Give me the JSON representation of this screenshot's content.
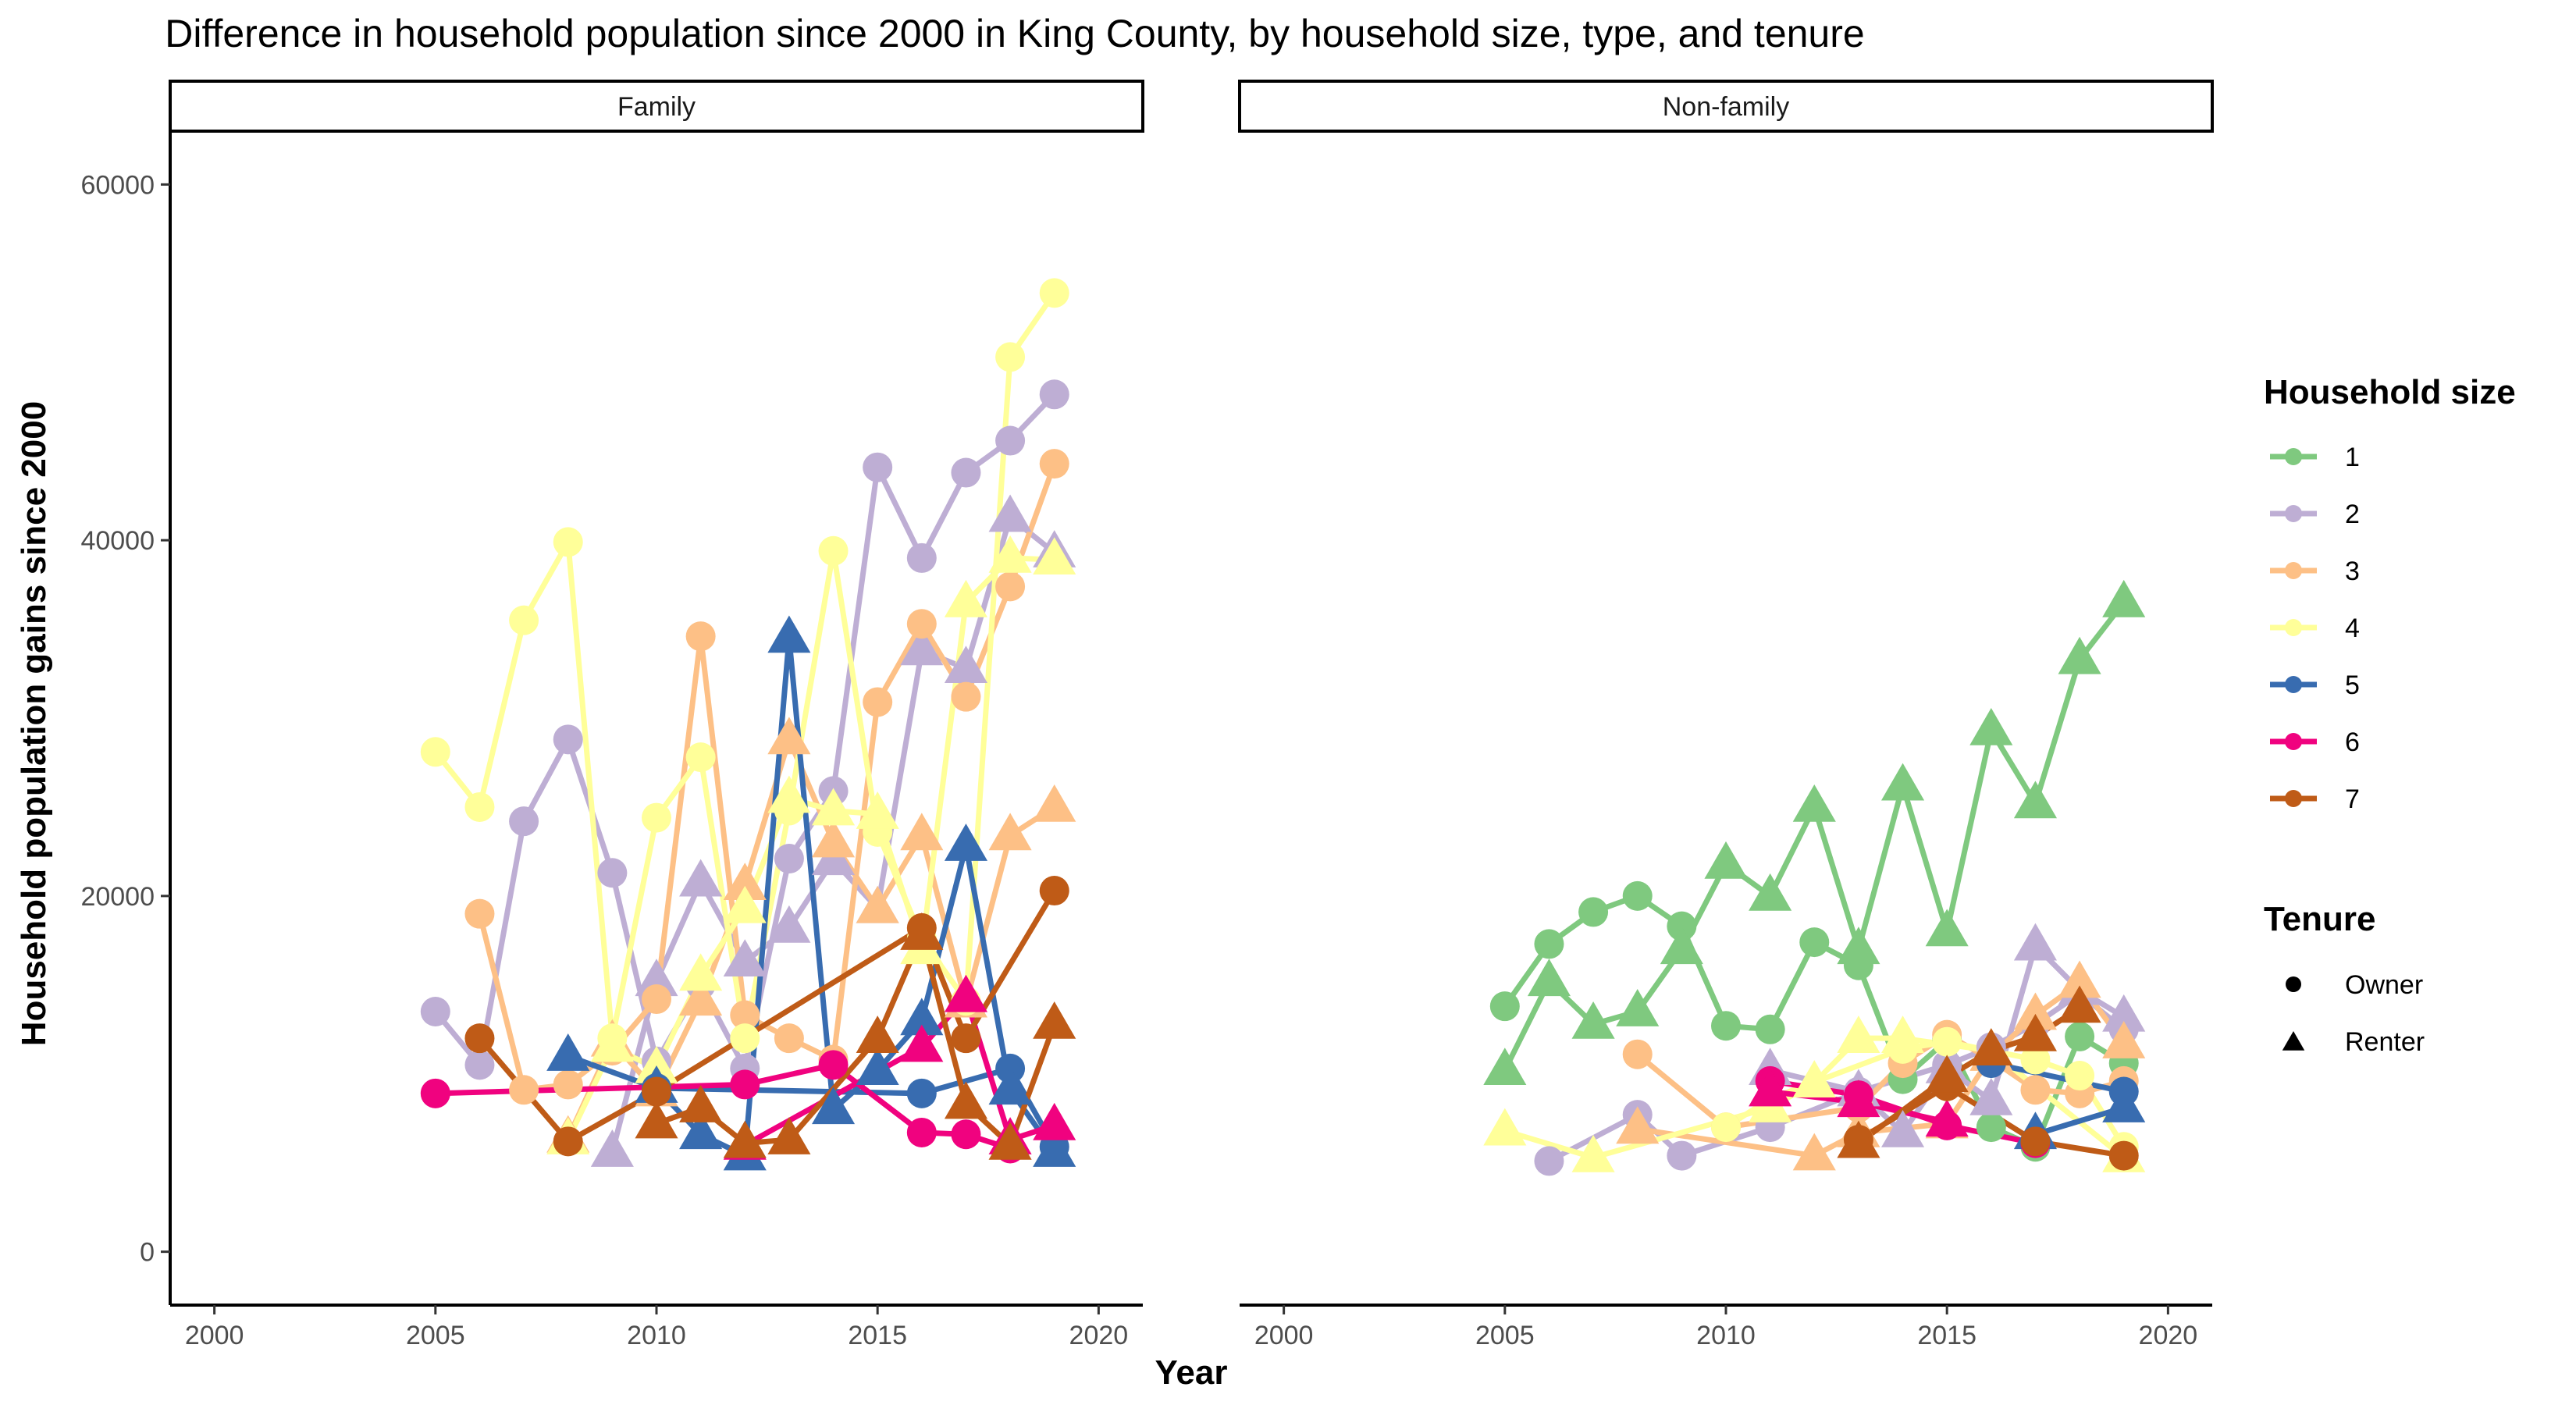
{
  "chart_data": {
    "type": "line",
    "title": "Difference in household population since 2000 in King County, by household size, type, and tenure",
    "xlabel": "Year",
    "ylabel": "Household population gains since 2000",
    "xlim": [
      1999,
      2021
    ],
    "ylim": [
      -3000,
      63000
    ],
    "xticks": [
      "2000",
      "2005",
      "2010",
      "2015",
      "2020"
    ],
    "yticks": [
      "0",
      "20000",
      "40000",
      "60000"
    ],
    "grid": false,
    "legend_placement": "right",
    "panels": [
      "Family",
      "Non-family"
    ],
    "legends": {
      "size": {
        "title": "Household size",
        "entries": [
          {
            "label": "1",
            "color": "#7FC97F"
          },
          {
            "label": "2",
            "color": "#BEAED4"
          },
          {
            "label": "3",
            "color": "#FDC086"
          },
          {
            "label": "4",
            "color": "#FFFF99"
          },
          {
            "label": "5",
            "color": "#386CB0"
          },
          {
            "label": "6",
            "color": "#F0027F"
          },
          {
            "label": "7",
            "color": "#BF5B17"
          }
        ]
      },
      "tenure": {
        "title": "Tenure",
        "entries": [
          {
            "label": "Owner",
            "shape": "circle"
          },
          {
            "label": "Renter",
            "shape": "triangle"
          }
        ]
      }
    },
    "series": [
      {
        "panel": 0,
        "size": 2,
        "tenure": "Owner",
        "points": [
          [
            2005,
            13500
          ],
          [
            2006,
            10500
          ],
          [
            2007,
            24200
          ],
          [
            2008,
            28800
          ],
          [
            2009,
            21300
          ],
          [
            2010,
            10700
          ],
          [
            2011,
            15000
          ],
          [
            2012,
            10300
          ],
          [
            2013,
            22100
          ],
          [
            2014,
            25900
          ],
          [
            2015,
            44100
          ],
          [
            2016,
            39000
          ],
          [
            2017,
            43800
          ],
          [
            2018,
            45600
          ],
          [
            2019,
            48200
          ]
        ]
      },
      {
        "panel": 0,
        "size": 2,
        "tenure": "Renter",
        "points": [
          [
            2009,
            5600
          ],
          [
            2010,
            15200
          ],
          [
            2011,
            20800
          ],
          [
            2012,
            16300
          ],
          [
            2013,
            18200
          ],
          [
            2014,
            22000
          ],
          [
            2015,
            19300
          ],
          [
            2016,
            33800
          ],
          [
            2017,
            32800
          ],
          [
            2018,
            41300
          ],
          [
            2019,
            39300
          ]
        ]
      },
      {
        "panel": 0,
        "size": 3,
        "tenure": "Owner",
        "points": [
          [
            2006,
            19000
          ],
          [
            2007,
            9100
          ],
          [
            2008,
            9400
          ],
          [
            2009,
            11300
          ],
          [
            2010,
            14200
          ],
          [
            2011,
            34600
          ],
          [
            2012,
            13300
          ],
          [
            2013,
            12000
          ],
          [
            2014,
            10800
          ],
          [
            2015,
            30900
          ],
          [
            2016,
            35300
          ],
          [
            2017,
            31200
          ],
          [
            2018,
            37400
          ],
          [
            2019,
            44300
          ]
        ]
      },
      {
        "panel": 0,
        "size": 3,
        "tenure": "Renter",
        "points": [
          [
            2008,
            6400
          ],
          [
            2009,
            11800
          ],
          [
            2010,
            9000
          ],
          [
            2011,
            14100
          ],
          [
            2012,
            20600
          ],
          [
            2013,
            28800
          ],
          [
            2014,
            23000
          ],
          [
            2015,
            19300
          ],
          [
            2016,
            23400
          ],
          [
            2017,
            14000
          ],
          [
            2018,
            23400
          ],
          [
            2019,
            25000
          ]
        ]
      },
      {
        "panel": 0,
        "size": 4,
        "tenure": "Owner",
        "points": [
          [
            2005,
            28100
          ],
          [
            2006,
            25000
          ],
          [
            2007,
            35500
          ],
          [
            2008,
            39900
          ],
          [
            2009,
            12000
          ],
          [
            2010,
            24400
          ],
          [
            2011,
            27800
          ],
          [
            2012,
            12000
          ],
          [
            2013,
            24800
          ],
          [
            2014,
            39400
          ],
          [
            2015,
            23600
          ],
          [
            2016,
            17600
          ],
          [
            2017,
            14100
          ],
          [
            2018,
            50300
          ],
          [
            2019,
            53900
          ]
        ]
      },
      {
        "panel": 0,
        "size": 4,
        "tenure": "Renter",
        "points": [
          [
            2008,
            6300
          ],
          [
            2009,
            11500
          ],
          [
            2010,
            10300
          ],
          [
            2011,
            15500
          ],
          [
            2012,
            19300
          ],
          [
            2013,
            25500
          ],
          [
            2014,
            24800
          ],
          [
            2015,
            24600
          ],
          [
            2016,
            17000
          ],
          [
            2017,
            36500
          ],
          [
            2018,
            39000
          ],
          [
            2019,
            38900
          ]
        ]
      },
      {
        "panel": 0,
        "size": 5,
        "tenure": "Owner",
        "points": [
          [
            2010,
            9200
          ],
          [
            2016,
            8900
          ],
          [
            2018,
            10300
          ],
          [
            2019,
            5900
          ]
        ]
      },
      {
        "panel": 0,
        "size": 5,
        "tenure": "Renter",
        "points": [
          [
            2008,
            11000
          ],
          [
            2010,
            9200
          ],
          [
            2011,
            6600
          ],
          [
            2012,
            5400
          ],
          [
            2013,
            34500
          ],
          [
            2014,
            8000
          ],
          [
            2015,
            10200
          ],
          [
            2016,
            13000
          ],
          [
            2017,
            22800
          ],
          [
            2018,
            9100
          ],
          [
            2019,
            5600
          ]
        ]
      },
      {
        "panel": 0,
        "size": 6,
        "tenure": "Owner",
        "points": [
          [
            2005,
            8900
          ],
          [
            2012,
            9400
          ],
          [
            2014,
            10500
          ],
          [
            2016,
            6700
          ],
          [
            2017,
            6600
          ],
          [
            2018,
            5800
          ]
        ]
      },
      {
        "panel": 0,
        "size": 6,
        "tenure": "Renter",
        "points": [
          [
            2012,
            6000
          ],
          [
            2016,
            11500
          ],
          [
            2017,
            14300
          ],
          [
            2018,
            6300
          ],
          [
            2019,
            7100
          ]
        ]
      },
      {
        "panel": 0,
        "size": 7,
        "tenure": "Owner",
        "points": [
          [
            2006,
            12000
          ],
          [
            2008,
            6200
          ],
          [
            2010,
            9000
          ],
          [
            2016,
            18200
          ],
          [
            2017,
            12000
          ],
          [
            2019,
            20300
          ]
        ]
      },
      {
        "panel": 0,
        "size": 7,
        "tenure": "Renter",
        "points": [
          [
            2010,
            7200
          ],
          [
            2011,
            8100
          ],
          [
            2012,
            6100
          ],
          [
            2013,
            6300
          ],
          [
            2015,
            12000
          ],
          [
            2016,
            17800
          ],
          [
            2017,
            8300
          ],
          [
            2018,
            6000
          ],
          [
            2019,
            12800
          ]
        ]
      },
      {
        "panel": 1,
        "size": 1,
        "tenure": "Owner",
        "points": [
          [
            2005,
            13800
          ],
          [
            2006,
            17300
          ],
          [
            2007,
            19100
          ],
          [
            2008,
            20000
          ],
          [
            2009,
            18300
          ],
          [
            2010,
            12700
          ],
          [
            2011,
            12500
          ],
          [
            2012,
            17400
          ],
          [
            2013,
            16100
          ],
          [
            2014,
            9700
          ],
          [
            2015,
            11900
          ],
          [
            2016,
            7000
          ],
          [
            2017,
            5900
          ],
          [
            2018,
            12100
          ],
          [
            2019,
            10600
          ]
        ]
      },
      {
        "panel": 1,
        "size": 1,
        "tenure": "Renter",
        "points": [
          [
            2005,
            10200
          ],
          [
            2006,
            15200
          ],
          [
            2007,
            12800
          ],
          [
            2008,
            13500
          ],
          [
            2009,
            17000
          ],
          [
            2010,
            21800
          ],
          [
            2011,
            20000
          ],
          [
            2012,
            25000
          ],
          [
            2013,
            17000
          ],
          [
            2014,
            26200
          ],
          [
            2015,
            18000
          ],
          [
            2016,
            29300
          ],
          [
            2017,
            25200
          ],
          [
            2018,
            33300
          ],
          [
            2019,
            36500
          ]
        ]
      },
      {
        "panel": 1,
        "size": 2,
        "tenure": "Owner",
        "points": [
          [
            2006,
            5100
          ],
          [
            2008,
            7700
          ],
          [
            2009,
            5400
          ],
          [
            2011,
            7000
          ],
          [
            2013,
            9000
          ],
          [
            2015,
            10500
          ],
          [
            2016,
            11500
          ],
          [
            2017,
            12800
          ],
          [
            2018,
            14500
          ],
          [
            2019,
            12500
          ]
        ]
      },
      {
        "panel": 1,
        "size": 2,
        "tenure": "Renter",
        "points": [
          [
            2011,
            10200
          ],
          [
            2013,
            9000
          ],
          [
            2014,
            6700
          ],
          [
            2015,
            10300
          ],
          [
            2016,
            8500
          ],
          [
            2017,
            17200
          ],
          [
            2018,
            14700
          ],
          [
            2019,
            13200
          ]
        ]
      },
      {
        "panel": 1,
        "size": 3,
        "tenure": "Owner",
        "points": [
          [
            2008,
            11100
          ],
          [
            2010,
            7000
          ],
          [
            2013,
            8100
          ],
          [
            2014,
            10600
          ],
          [
            2015,
            12200
          ],
          [
            2016,
            10800
          ],
          [
            2017,
            9100
          ],
          [
            2018,
            8900
          ],
          [
            2019,
            9600
          ]
        ]
      },
      {
        "panel": 1,
        "size": 3,
        "tenure": "Renter",
        "points": [
          [
            2008,
            6900
          ],
          [
            2012,
            5400
          ],
          [
            2013,
            6700
          ],
          [
            2015,
            7200
          ],
          [
            2016,
            11000
          ],
          [
            2017,
            13300
          ],
          [
            2018,
            15100
          ],
          [
            2019,
            11700
          ]
        ]
      },
      {
        "panel": 1,
        "size": 4,
        "tenure": "Owner",
        "points": [
          [
            2010,
            7000
          ],
          [
            2011,
            8600
          ],
          [
            2014,
            11400
          ],
          [
            2015,
            11800
          ],
          [
            2017,
            10800
          ],
          [
            2018,
            9900
          ],
          [
            2019,
            5900
          ]
        ]
      },
      {
        "panel": 1,
        "size": 4,
        "tenure": "Renter",
        "points": [
          [
            2005,
            6800
          ],
          [
            2007,
            5300
          ],
          [
            2011,
            8100
          ],
          [
            2012,
            9500
          ],
          [
            2013,
            12000
          ],
          [
            2014,
            12000
          ],
          [
            2016,
            11300
          ],
          [
            2019,
            5300
          ]
        ]
      },
      {
        "panel": 1,
        "size": 5,
        "tenure": "Owner",
        "points": [
          [
            2016,
            10600
          ],
          [
            2019,
            9000
          ]
        ]
      },
      {
        "panel": 1,
        "size": 5,
        "tenure": "Renter",
        "points": [
          [
            2017,
            6600
          ],
          [
            2019,
            8100
          ]
        ]
      },
      {
        "panel": 1,
        "size": 6,
        "tenure": "Owner",
        "points": [
          [
            2011,
            9600
          ],
          [
            2013,
            8800
          ],
          [
            2015,
            7100
          ],
          [
            2017,
            6100
          ]
        ]
      },
      {
        "panel": 1,
        "size": 6,
        "tenure": "Renter",
        "points": [
          [
            2011,
            9000
          ],
          [
            2013,
            8400
          ],
          [
            2015,
            7300
          ]
        ]
      },
      {
        "panel": 1,
        "size": 7,
        "tenure": "Owner",
        "points": [
          [
            2013,
            6300
          ],
          [
            2015,
            9300
          ],
          [
            2017,
            6200
          ],
          [
            2019,
            5400
          ]
        ]
      },
      {
        "panel": 1,
        "size": 7,
        "tenure": "Renter",
        "points": [
          [
            2013,
            6100
          ],
          [
            2015,
            9800
          ],
          [
            2016,
            11300
          ],
          [
            2017,
            12100
          ],
          [
            2018,
            13700
          ]
        ]
      }
    ]
  }
}
